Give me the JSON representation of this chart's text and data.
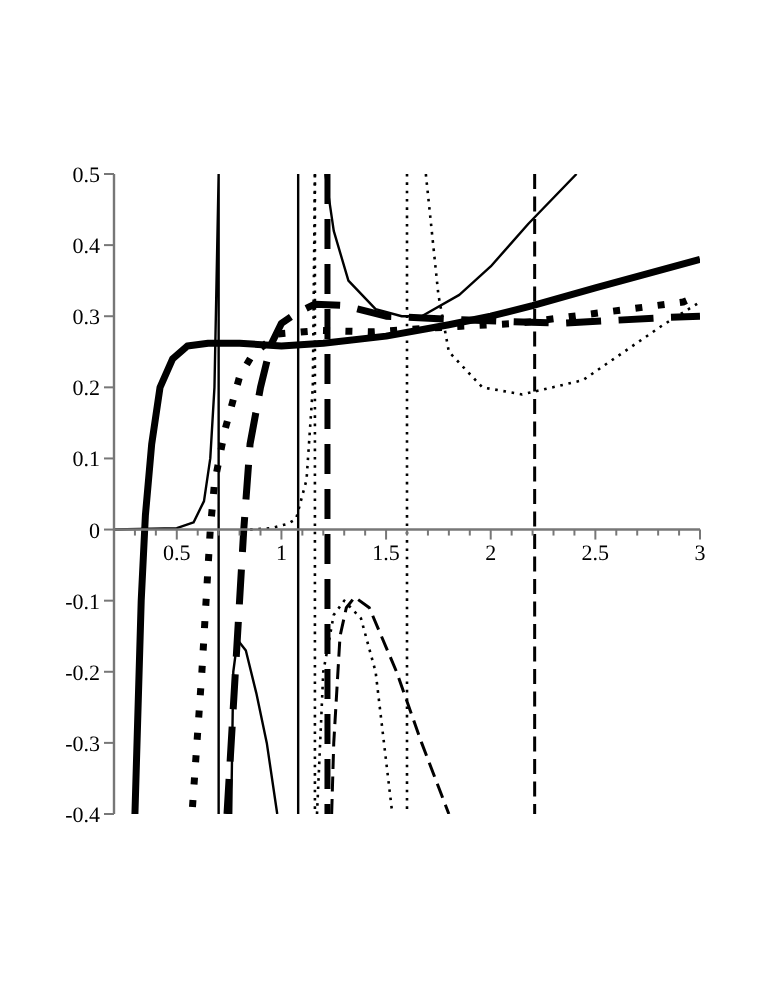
{
  "chart_data": {
    "type": "line",
    "xlim": [
      0.2,
      3
    ],
    "ylim": [
      -0.4,
      0.5
    ],
    "xticks": [
      {
        "value": 0.3,
        "label": null
      },
      {
        "value": 0.4,
        "label": null
      },
      0.5,
      {
        "value": 0.6,
        "label": null
      },
      {
        "value": 0.7,
        "label": null
      },
      {
        "value": 0.8,
        "label": null
      },
      {
        "value": 0.9,
        "label": null
      },
      1,
      {
        "value": 1.1,
        "label": null
      },
      {
        "value": 1.2,
        "label": null
      },
      {
        "value": 1.3,
        "label": null
      },
      {
        "value": 1.4,
        "label": null
      },
      1.5,
      {
        "value": 1.6,
        "label": null
      },
      {
        "value": 1.7,
        "label": null
      },
      {
        "value": 1.8,
        "label": null
      },
      {
        "value": 1.9,
        "label": null
      },
      2,
      {
        "value": 2.1,
        "label": null
      },
      {
        "value": 2.2,
        "label": null
      },
      {
        "value": 2.3,
        "label": null
      },
      {
        "value": 2.4,
        "label": null
      },
      2.5,
      {
        "value": 2.6,
        "label": null
      },
      {
        "value": 2.7,
        "label": null
      },
      {
        "value": 2.8,
        "label": null
      },
      {
        "value": 2.9,
        "label": null
      },
      3
    ],
    "yticks": [
      -0.4,
      -0.3,
      -0.2,
      -0.1,
      0,
      0.1,
      0.2,
      0.3,
      0.4,
      0.5
    ],
    "grid": false,
    "series": [
      {
        "color": "#000000",
        "line_style": "solid",
        "x": [
          0.3,
          0.33,
          0.35,
          0.38,
          0.42,
          0.48,
          0.55,
          0.65,
          0.8,
          1.0,
          1.2,
          1.5,
          1.8,
          2.0,
          2.2,
          2.5,
          3
        ],
        "values": [
          -0.4,
          -0.1,
          0.02,
          0.12,
          0.2,
          0.24,
          0.258,
          0.262,
          0.262,
          0.258,
          0.262,
          0.272,
          0.288,
          0.3,
          0.315,
          0.34,
          0.38
        ]
      },
      {
        "color": "#000000",
        "line_style": "solid",
        "x": [
          0.2,
          0.5,
          0.58,
          0.63,
          0.66,
          0.68,
          0.69,
          0.7,
          0.7
        ],
        "values": [
          0,
          0.002,
          0.01,
          0.04,
          0.1,
          0.2,
          0.35,
          0.5,
          -0.4
        ]
      },
      {
        "color": "#000000",
        "line_style": "solid",
        "x": [
          0.76,
          0.77,
          0.79,
          0.83,
          0.88,
          0.93,
          0.98
        ],
        "values": [
          -0.4,
          -0.2,
          -0.155,
          -0.17,
          -0.23,
          -0.3,
          -0.4
        ]
      },
      {
        "color": "#000000",
        "line_style": "solid",
        "x": [
          1.08,
          1.08
        ],
        "values": [
          0.5,
          -0.4
        ]
      },
      {
        "color": "#000000",
        "line_style": "solid",
        "x": [
          1.21,
          1.25,
          1.32,
          1.45,
          1.575,
          1.67,
          1.85,
          2.0,
          2.18,
          2.41
        ],
        "values": [
          0.5,
          0.42,
          0.35,
          0.31,
          0.3,
          0.3,
          0.33,
          0.37,
          0.43,
          0.5
        ]
      },
      {
        "color": "#000000",
        "line_style": "dashed",
        "x": [
          0.74,
          0.77,
          0.8,
          0.82,
          0.85,
          0.9,
          0.95,
          1.0,
          1.075,
          1.16,
          1.3,
          1.5,
          1.86,
          2.34,
          2.82,
          3
        ],
        "values": [
          -0.4,
          -0.25,
          -0.1,
          0,
          0.12,
          0.2,
          0.26,
          0.29,
          0.305,
          0.317,
          0.315,
          0.3,
          0.295,
          0.29,
          0.298,
          0.3
        ]
      },
      {
        "color": "#000000",
        "line_style": "dashed",
        "x": [
          1.22,
          1.22
        ],
        "values": [
          0.5,
          -0.4
        ]
      },
      {
        "color": "#000000",
        "line_style": "dashed",
        "x": [
          1.24,
          1.25,
          1.28,
          1.31,
          1.35,
          1.42,
          1.55,
          1.67,
          1.8
        ],
        "values": [
          -0.4,
          -0.3,
          -0.15,
          -0.11,
          -0.095,
          -0.11,
          -0.2,
          -0.3,
          -0.4
        ]
      },
      {
        "color": "#000000",
        "line_style": "dashed",
        "x": [
          2.21,
          2.21
        ],
        "values": [
          0.5,
          -0.4
        ]
      },
      {
        "color": "#000000",
        "line_style": "dotted",
        "x": [
          0.575,
          0.62,
          0.66,
          0.68,
          0.73,
          0.8,
          0.86,
          0.98,
          1.19,
          1.43,
          1.86,
          2.13,
          2.66,
          2.92,
          3
        ],
        "values": [
          -0.39,
          -0.2,
          0,
          0.065,
          0.14,
          0.215,
          0.245,
          0.275,
          0.28,
          0.278,
          0.286,
          0.29,
          0.31,
          0.32,
          0.33
        ]
      },
      {
        "color": "#000000",
        "line_style": "dotted",
        "x": [
          0.85,
          0.95,
          1.03,
          1.07,
          1.12,
          1.15,
          1.16
        ],
        "values": [
          0,
          0.002,
          0.008,
          0.015,
          0.07,
          0.2,
          0.5
        ]
      },
      {
        "color": "#000000",
        "line_style": "dotted",
        "x": [
          1.16,
          1.16
        ],
        "values": [
          0.5,
          -0.4
        ]
      },
      {
        "color": "#000000",
        "line_style": "dotted",
        "x": [
          1.17,
          1.2,
          1.25,
          1.3,
          1.38,
          1.45,
          1.53
        ],
        "values": [
          -0.4,
          -0.2,
          -0.12,
          -0.1,
          -0.125,
          -0.2,
          -0.4
        ]
      },
      {
        "color": "#000000",
        "line_style": "dotted",
        "x": [
          1.6,
          1.6
        ],
        "values": [
          0.5,
          -0.4
        ]
      },
      {
        "color": "#000000",
        "line_style": "dotted",
        "x": [
          1.69,
          1.75,
          1.8,
          1.96,
          2.15,
          2.44,
          2.82,
          3
        ],
        "values": [
          0.5,
          0.33,
          0.25,
          0.2,
          0.19,
          0.21,
          0.287,
          0.32
        ]
      }
    ]
  }
}
